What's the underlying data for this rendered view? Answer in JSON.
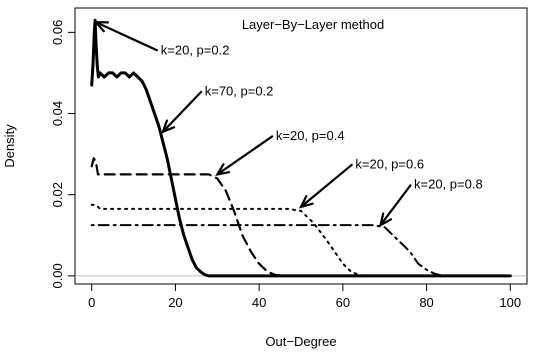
{
  "chart_data": {
    "type": "line",
    "title": "Layer−By−Layer method",
    "xlabel": "Out−Degree",
    "ylabel": "Density",
    "xlim": [
      -4,
      104
    ],
    "ylim": [
      -0.002,
      0.066
    ],
    "x_ticks": [
      0,
      20,
      40,
      60,
      80,
      100
    ],
    "x_tick_labels": [
      "0",
      "20",
      "40",
      "60",
      "80",
      "100"
    ],
    "y_ticks": [
      0.0,
      0.02,
      0.04,
      0.06
    ],
    "y_tick_labels": [
      "0.00",
      "0.02",
      "0.04",
      "0.06"
    ],
    "reference_line_y": 0,
    "series": [
      {
        "style": "solid",
        "points": [
          [
            0,
            0.047
          ],
          [
            0.3,
            0.052
          ],
          [
            0.6,
            0.06
          ],
          [
            0.8,
            0.063
          ],
          [
            1.0,
            0.058
          ],
          [
            1.3,
            0.052
          ],
          [
            1.6,
            0.049
          ],
          [
            2,
            0.05
          ],
          [
            3,
            0.049
          ],
          [
            4,
            0.05
          ],
          [
            5,
            0.05
          ],
          [
            6,
            0.049
          ],
          [
            7,
            0.05
          ],
          [
            8,
            0.05
          ],
          [
            9,
            0.049
          ],
          [
            10,
            0.05
          ],
          [
            11,
            0.049
          ],
          [
            12,
            0.048
          ],
          [
            13,
            0.046
          ],
          [
            14,
            0.043
          ],
          [
            15,
            0.04
          ],
          [
            16,
            0.037
          ],
          [
            17,
            0.033
          ],
          [
            18,
            0.029
          ],
          [
            19,
            0.024
          ],
          [
            20,
            0.019
          ],
          [
            21,
            0.014
          ],
          [
            22,
            0.01
          ],
          [
            23,
            0.007
          ],
          [
            24,
            0.004
          ],
          [
            25,
            0.002
          ],
          [
            26,
            0.001
          ],
          [
            27,
            0.0003
          ],
          [
            28,
            0
          ],
          [
            100,
            0
          ]
        ]
      },
      {
        "style": "dashed",
        "points": [
          [
            0,
            0.027
          ],
          [
            0.5,
            0.029
          ],
          [
            1,
            0.028
          ],
          [
            1.5,
            0.025
          ],
          [
            3,
            0.025
          ],
          [
            6,
            0.025
          ],
          [
            10,
            0.025
          ],
          [
            15,
            0.025
          ],
          [
            20,
            0.025
          ],
          [
            25,
            0.025
          ],
          [
            28,
            0.025
          ],
          [
            30,
            0.024
          ],
          [
            32,
            0.021
          ],
          [
            34,
            0.016
          ],
          [
            36,
            0.01
          ],
          [
            38,
            0.006
          ],
          [
            40,
            0.003
          ],
          [
            42,
            0.001
          ],
          [
            44,
            0.0002
          ],
          [
            46,
            0
          ],
          [
            100,
            0
          ]
        ]
      },
      {
        "style": "dotted",
        "points": [
          [
            0,
            0.0175
          ],
          [
            1,
            0.0175
          ],
          [
            2,
            0.0165
          ],
          [
            5,
            0.0165
          ],
          [
            10,
            0.0165
          ],
          [
            20,
            0.0165
          ],
          [
            30,
            0.0165
          ],
          [
            40,
            0.0165
          ],
          [
            47,
            0.0165
          ],
          [
            50,
            0.016
          ],
          [
            53,
            0.013
          ],
          [
            56,
            0.009
          ],
          [
            58,
            0.006
          ],
          [
            60,
            0.003
          ],
          [
            62,
            0.001
          ],
          [
            64,
            0.0002
          ],
          [
            66,
            0
          ],
          [
            100,
            0
          ]
        ]
      },
      {
        "style": "dotdash",
        "points": [
          [
            0,
            0.0125
          ],
          [
            10,
            0.0125
          ],
          [
            20,
            0.0125
          ],
          [
            30,
            0.0125
          ],
          [
            40,
            0.0125
          ],
          [
            50,
            0.0125
          ],
          [
            60,
            0.0125
          ],
          [
            67,
            0.0125
          ],
          [
            70,
            0.012
          ],
          [
            73,
            0.009
          ],
          [
            76,
            0.006
          ],
          [
            78,
            0.003
          ],
          [
            80,
            0.0015
          ],
          [
            82,
            0.0005
          ],
          [
            84,
            0
          ],
          [
            100,
            0
          ]
        ]
      }
    ],
    "annotations": [
      {
        "text": "k=20, p=0.2",
        "arrow_to": [
          1,
          0.0625
        ],
        "text_at": [
          16.5,
          0.0545
        ]
      },
      {
        "text": "k=70, p=0.2",
        "arrow_to": [
          17,
          0.0355
        ],
        "text_at": [
          27,
          0.0445
        ]
      },
      {
        "text": "k=20, p=0.4",
        "arrow_to": [
          30,
          0.025
        ],
        "text_at": [
          44,
          0.0335
        ]
      },
      {
        "text": "k=20, p=0.6",
        "arrow_to": [
          50,
          0.017
        ],
        "text_at": [
          63,
          0.0265
        ]
      },
      {
        "text": "k=20, p=0.8",
        "arrow_to": [
          69,
          0.0125
        ],
        "text_at": [
          77,
          0.0215
        ]
      }
    ]
  }
}
